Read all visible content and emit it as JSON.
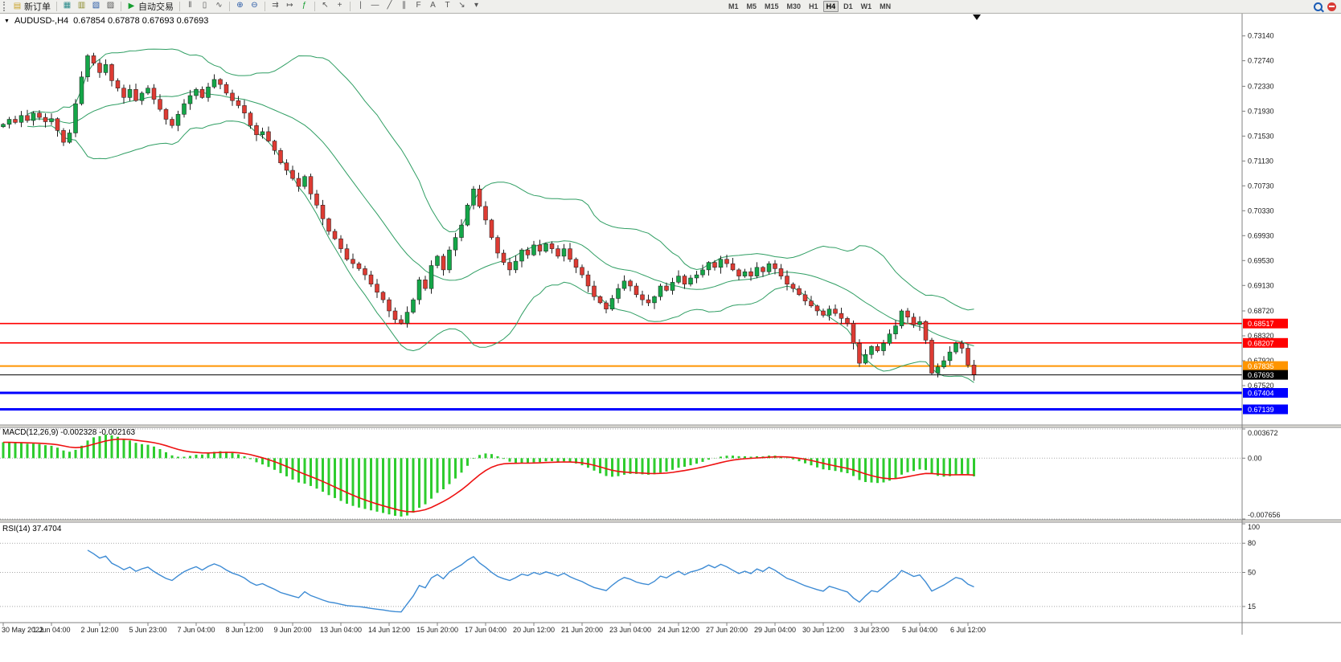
{
  "toolbar": {
    "new_order_label": "新订单",
    "auto_trading_label": "自动交易",
    "timeframes": {
      "items": [
        "M1",
        "M5",
        "M15",
        "M30",
        "H1",
        "H4",
        "D1",
        "W1",
        "MN"
      ],
      "active": "H4"
    }
  },
  "icons": {
    "new_order": "▤",
    "tile_windows": "▦",
    "charts": "▥",
    "navigator": "▧",
    "terminal": "▨",
    "play": "▶",
    "bars_chart": "‖",
    "candles_chart": "▯",
    "line_chart": "∿",
    "zoom_in": "⊕",
    "zoom_out": "⊖",
    "auto_scroll": "⇉",
    "chart_shift": "↦",
    "indicators": "ƒ",
    "cursor": "↖",
    "crosshair": "+",
    "vline": "|",
    "hline": "―",
    "trendline": "╱",
    "channel": "∥",
    "fibonacci": "F",
    "text_tool": "A",
    "label_tool": "T",
    "arrows_tool": "↘",
    "dropdown": "▾",
    "symbol_dropdown": "▼"
  },
  "chart": {
    "symbol_period": "AUDUSD-,H4",
    "ohlc_text": "0.67854 0.67878 0.67693 0.67693",
    "open": "0.67854",
    "high": "0.67878",
    "low": "0.67693",
    "close": "0.67693"
  },
  "indicators_text": {
    "macd": "MACD(12,26,9) -0.002328 -0.002163",
    "rsi": "RSI(14) 37.4704"
  },
  "colors": {
    "bull": "#14a648",
    "bear": "#dd3b33",
    "wick": "#1f1f1f",
    "bollinger": "#2f9e63",
    "macd_hist": "#2ecc2e",
    "macd_signal": "#ee1111",
    "rsi_line": "#3d8bd4",
    "grid_dotted": "#a8a8a8",
    "axis_line": "#808080",
    "axis_text": "#1a1a1a"
  },
  "chart_data": {
    "type": "candlestick",
    "title": "AUDUSD-,H4",
    "symbol": "AUDUSD-",
    "period": "H4",
    "ylim": [
      0.669,
      0.7351
    ],
    "first_open": 0.7168,
    "closes": [
      0.7172,
      0.718,
      0.7175,
      0.7186,
      0.7178,
      0.719,
      0.7183,
      0.7176,
      0.7181,
      0.7162,
      0.7143,
      0.7158,
      0.7205,
      0.7248,
      0.7282,
      0.727,
      0.7255,
      0.7268,
      0.7242,
      0.723,
      0.7215,
      0.7228,
      0.721,
      0.7222,
      0.723,
      0.7212,
      0.7196,
      0.718,
      0.717,
      0.7188,
      0.7205,
      0.7218,
      0.7228,
      0.7215,
      0.7232,
      0.7244,
      0.7236,
      0.7222,
      0.721,
      0.7202,
      0.719,
      0.717,
      0.7155,
      0.716,
      0.7145,
      0.713,
      0.711,
      0.7098,
      0.7085,
      0.7072,
      0.7088,
      0.706,
      0.7042,
      0.702,
      0.7,
      0.6988,
      0.6972,
      0.6955,
      0.6948,
      0.694,
      0.693,
      0.6915,
      0.6902,
      0.689,
      0.6872,
      0.6858,
      0.6852,
      0.687,
      0.689,
      0.6922,
      0.6908,
      0.6945,
      0.696,
      0.6938,
      0.697,
      0.699,
      0.701,
      0.7042,
      0.7068,
      0.704,
      0.7018,
      0.699,
      0.6965,
      0.695,
      0.6938,
      0.6952,
      0.697,
      0.6962,
      0.6978,
      0.6968,
      0.698,
      0.6972,
      0.696,
      0.6972,
      0.6955,
      0.6942,
      0.693,
      0.6912,
      0.6895,
      0.6885,
      0.6875,
      0.6892,
      0.6908,
      0.692,
      0.6912,
      0.6898,
      0.689,
      0.6885,
      0.6895,
      0.6912,
      0.6905,
      0.6918,
      0.6928,
      0.6915,
      0.6925,
      0.693,
      0.6938,
      0.695,
      0.6942,
      0.6955,
      0.6948,
      0.6938,
      0.6928,
      0.6935,
      0.6928,
      0.6942,
      0.6935,
      0.6948,
      0.694,
      0.6928,
      0.6915,
      0.6908,
      0.6898,
      0.6888,
      0.688,
      0.6872,
      0.6865,
      0.6875,
      0.6868,
      0.686,
      0.6852,
      0.682,
      0.6788,
      0.6802,
      0.6815,
      0.6808,
      0.682,
      0.6835,
      0.6848,
      0.6872,
      0.6862,
      0.685,
      0.6855,
      0.6825,
      0.6772,
      0.6782,
      0.6792,
      0.6806,
      0.682,
      0.6812,
      0.6785,
      0.67693
    ],
    "price_axis_labels": [
      "0.73140",
      "0.72740",
      "0.72330",
      "0.71930",
      "0.71530",
      "0.71130",
      "0.70730",
      "0.70330",
      "0.69930",
      "0.69530",
      "0.69130",
      "0.68720",
      "0.68320",
      "0.67920",
      "0.67520"
    ],
    "levels": [
      {
        "value": 0.68517,
        "label": "0.68517",
        "color": "#FF0000",
        "width": 1.6
      },
      {
        "value": 0.68207,
        "label": "0.68207",
        "color": "#FF0000",
        "width": 1.6
      },
      {
        "value": 0.67835,
        "label": "0.67835",
        "color": "#FF9500",
        "width": 2
      },
      {
        "value": 0.67693,
        "label": "0.67693",
        "color": "#000000",
        "width": 1,
        "type": "bid"
      },
      {
        "value": 0.67404,
        "label": "0.67404",
        "color": "#0000FF",
        "width": 3
      },
      {
        "value": 0.67139,
        "label": "0.67139",
        "color": "#0000FF",
        "width": 3
      }
    ],
    "time_labels": [
      "30 May 2022",
      "1 Jun 04:00",
      "2 Jun 12:00",
      "5 Jun 23:00",
      "7 Jun 04:00",
      "8 Jun 12:00",
      "9 Jun 20:00",
      "13 Jun 04:00",
      "14 Jun 12:00",
      "15 Jun 20:00",
      "17 Jun 04:00",
      "20 Jun 12:00",
      "21 Jun 20:00",
      "23 Jun 04:00",
      "24 Jun 12:00",
      "27 Jun 20:00",
      "29 Jun 04:00",
      "30 Jun 12:00",
      "3 Jul 23:00",
      "5 Jul 04:00",
      "6 Jul 12:00"
    ],
    "indicators": {
      "bollinger": {
        "period": 20,
        "deviation": 2
      },
      "macd": {
        "fast": 12,
        "slow": 26,
        "signal": 9,
        "current_main": -0.002328,
        "current_signal": -0.002163,
        "grid": [
          0.003672,
          0,
          -0.007656
        ],
        "axis_labels": [
          "0.003672",
          "0.00",
          "-0.007656"
        ]
      },
      "rsi": {
        "period": 14,
        "current": 37.4704,
        "levels": [
          80,
          50,
          15
        ],
        "axis_labels": [
          "100",
          "80",
          "50",
          "15"
        ]
      }
    }
  }
}
